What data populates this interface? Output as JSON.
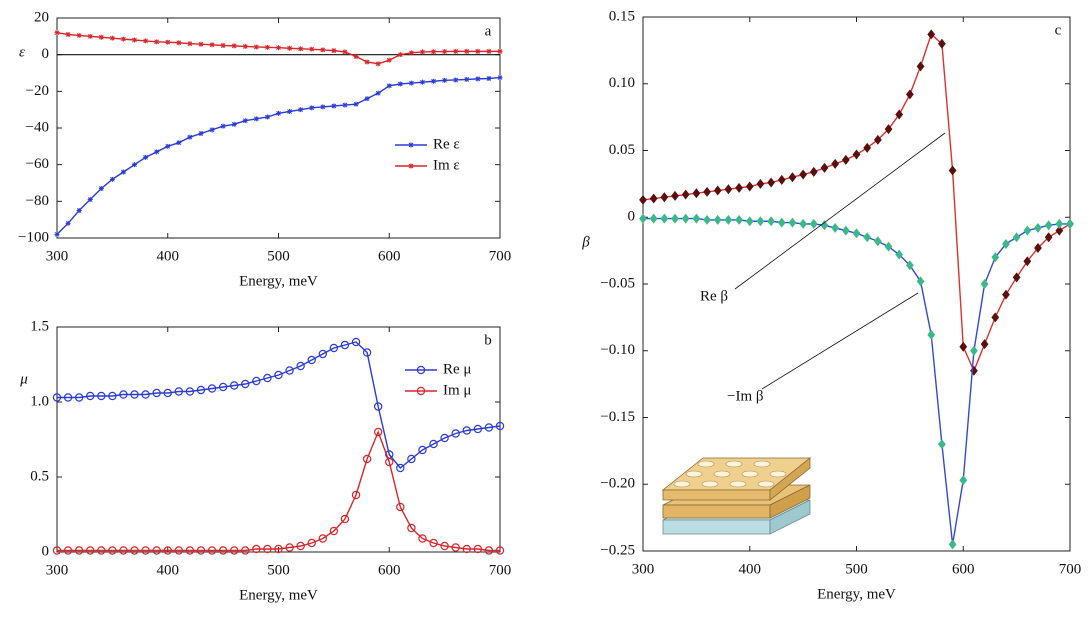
{
  "chart_data": [
    {
      "type": "line",
      "label": "a",
      "ylabel": "ε",
      "xlabel": "Energy, meV",
      "x": [
        300,
        310,
        320,
        330,
        340,
        350,
        360,
        370,
        380,
        390,
        400,
        410,
        420,
        430,
        440,
        450,
        460,
        470,
        480,
        490,
        500,
        510,
        520,
        530,
        540,
        550,
        560,
        570,
        580,
        590,
        600,
        610,
        620,
        630,
        640,
        650,
        660,
        670,
        680,
        690,
        700
      ],
      "xlim": [
        300,
        700
      ],
      "xticks": [
        300,
        400,
        500,
        600,
        700
      ],
      "ylim": [
        -100,
        20
      ],
      "yticks": [
        20,
        0,
        {
          "value": -20,
          "label": "−20"
        },
        {
          "value": -40,
          "label": "−40"
        },
        {
          "value": -60,
          "label": "−60"
        },
        {
          "value": -80,
          "label": "−80"
        },
        {
          "value": -100,
          "label": "−100"
        }
      ],
      "zero_line": true,
      "legend": "center right",
      "series": [
        {
          "name": "Re ε",
          "color": "#2b3bd6",
          "marker": "star",
          "values": [
            -98,
            -92,
            -85,
            -79,
            -73,
            -68,
            -64,
            -60,
            -56,
            -53,
            -50,
            -48,
            -45,
            -43,
            -41,
            -39,
            -38,
            -36,
            -35,
            -34,
            -32,
            -31,
            -30,
            -29,
            -28.5,
            -28,
            -27.5,
            -27,
            -24,
            -21,
            -17,
            -16,
            -15.5,
            -15,
            -14.5,
            -14,
            -13.8,
            -13.5,
            -13.2,
            -13,
            -12.5
          ]
        },
        {
          "name": "Im ε",
          "color": "#d8262a",
          "marker": "star",
          "values": [
            12,
            11,
            10.5,
            10,
            9.5,
            9,
            8.5,
            8,
            7.5,
            7,
            6.8,
            6.5,
            6,
            5.7,
            5.4,
            5,
            4.8,
            4.5,
            4.2,
            4,
            3.8,
            3.5,
            3.2,
            3,
            2.6,
            2.2,
            1.5,
            -1,
            -4,
            -5,
            -3,
            0,
            1,
            1.5,
            1.6,
            1.7,
            1.8,
            1.8,
            1.8,
            1.8,
            1.8
          ]
        }
      ]
    },
    {
      "type": "line",
      "label": "b",
      "ylabel": "μ",
      "xlabel": "Energy, meV",
      "x": [
        300,
        310,
        320,
        330,
        340,
        350,
        360,
        370,
        380,
        390,
        400,
        410,
        420,
        430,
        440,
        450,
        460,
        470,
        480,
        490,
        500,
        510,
        520,
        530,
        540,
        550,
        560,
        570,
        580,
        590,
        600,
        610,
        620,
        630,
        640,
        650,
        660,
        670,
        680,
        690,
        700
      ],
      "xlim": [
        300,
        700
      ],
      "xticks": [
        300,
        400,
        500,
        600,
        700
      ],
      "ylim": [
        0,
        1.5
      ],
      "yticks": [
        0,
        0.5,
        {
          "value": 1,
          "label": "1.0"
        },
        1.5
      ],
      "legend": "upper right",
      "series": [
        {
          "name": "Re μ",
          "color": "#2b3bd6",
          "marker": "circle",
          "values": [
            1.03,
            1.03,
            1.03,
            1.04,
            1.04,
            1.04,
            1.05,
            1.05,
            1.05,
            1.06,
            1.06,
            1.07,
            1.07,
            1.08,
            1.09,
            1.1,
            1.11,
            1.12,
            1.14,
            1.16,
            1.18,
            1.21,
            1.24,
            1.28,
            1.32,
            1.36,
            1.38,
            1.4,
            1.33,
            0.97,
            0.65,
            0.56,
            0.62,
            0.68,
            0.72,
            0.76,
            0.79,
            0.81,
            0.82,
            0.83,
            0.84
          ]
        },
        {
          "name": "Im μ",
          "color": "#d8262a",
          "marker": "circle",
          "values": [
            0.01,
            0.01,
            0.01,
            0.01,
            0.01,
            0.01,
            0.01,
            0.01,
            0.01,
            0.01,
            0.01,
            0.01,
            0.01,
            0.01,
            0.01,
            0.01,
            0.01,
            0.01,
            0.02,
            0.02,
            0.02,
            0.03,
            0.04,
            0.06,
            0.09,
            0.14,
            0.22,
            0.38,
            0.62,
            0.8,
            0.6,
            0.3,
            0.16,
            0.09,
            0.06,
            0.04,
            0.03,
            0.02,
            0.02,
            0.01,
            0.01
          ]
        }
      ]
    },
    {
      "type": "line",
      "label": "c",
      "ylabel": "β",
      "xlabel": "Energy, meV",
      "x": [
        300,
        310,
        320,
        330,
        340,
        350,
        360,
        370,
        380,
        390,
        400,
        410,
        420,
        430,
        440,
        450,
        460,
        470,
        480,
        490,
        500,
        510,
        520,
        530,
        540,
        550,
        560,
        570,
        580,
        590,
        600,
        610,
        620,
        630,
        640,
        650,
        660,
        670,
        680,
        690,
        700
      ],
      "xlim": [
        300,
        700
      ],
      "xticks": [
        300,
        400,
        500,
        600,
        700
      ],
      "ylim": [
        -0.25,
        0.15
      ],
      "yticks": [
        0.15,
        {
          "value": 0.1,
          "label": "0.10"
        },
        0.05,
        0,
        {
          "value": -0.05,
          "label": "−0.05"
        },
        {
          "value": -0.1,
          "label": "−0.10"
        },
        {
          "value": -0.15,
          "label": "−0.15"
        },
        {
          "value": -0.2,
          "label": "−0.20"
        },
        {
          "value": -0.25,
          "label": "−0.25"
        }
      ],
      "series": [
        {
          "name": "Re β",
          "color": "#e0302c",
          "marker": "diamond",
          "marker_color": "#5a0f0f",
          "values": [
            0.013,
            0.014,
            0.015,
            0.016,
            0.017,
            0.018,
            0.019,
            0.02,
            0.021,
            0.022,
            0.023,
            0.025,
            0.026,
            0.028,
            0.03,
            0.032,
            0.034,
            0.037,
            0.04,
            0.043,
            0.047,
            0.052,
            0.058,
            0.066,
            0.077,
            0.092,
            0.113,
            0.137,
            0.13,
            0.035,
            -0.097,
            -0.115,
            -0.095,
            -0.075,
            -0.058,
            -0.045,
            -0.033,
            -0.023,
            -0.015,
            -0.01,
            -0.005
          ]
        },
        {
          "name": "−Im β",
          "color": "#3148d8",
          "marker": "diamond",
          "marker_color": "#3bb889",
          "values": [
            -0.001,
            -0.001,
            -0.001,
            -0.001,
            -0.001,
            -0.001,
            -0.002,
            -0.002,
            -0.002,
            -0.002,
            -0.003,
            -0.003,
            -0.003,
            -0.004,
            -0.004,
            -0.005,
            -0.005,
            -0.006,
            -0.008,
            -0.01,
            -0.012,
            -0.015,
            -0.018,
            -0.022,
            -0.028,
            -0.036,
            -0.048,
            -0.088,
            -0.17,
            -0.245,
            -0.197,
            -0.1,
            -0.05,
            -0.03,
            -0.02,
            -0.015,
            -0.01,
            -0.008,
            -0.006,
            -0.005,
            -0.005
          ]
        }
      ]
    }
  ]
}
